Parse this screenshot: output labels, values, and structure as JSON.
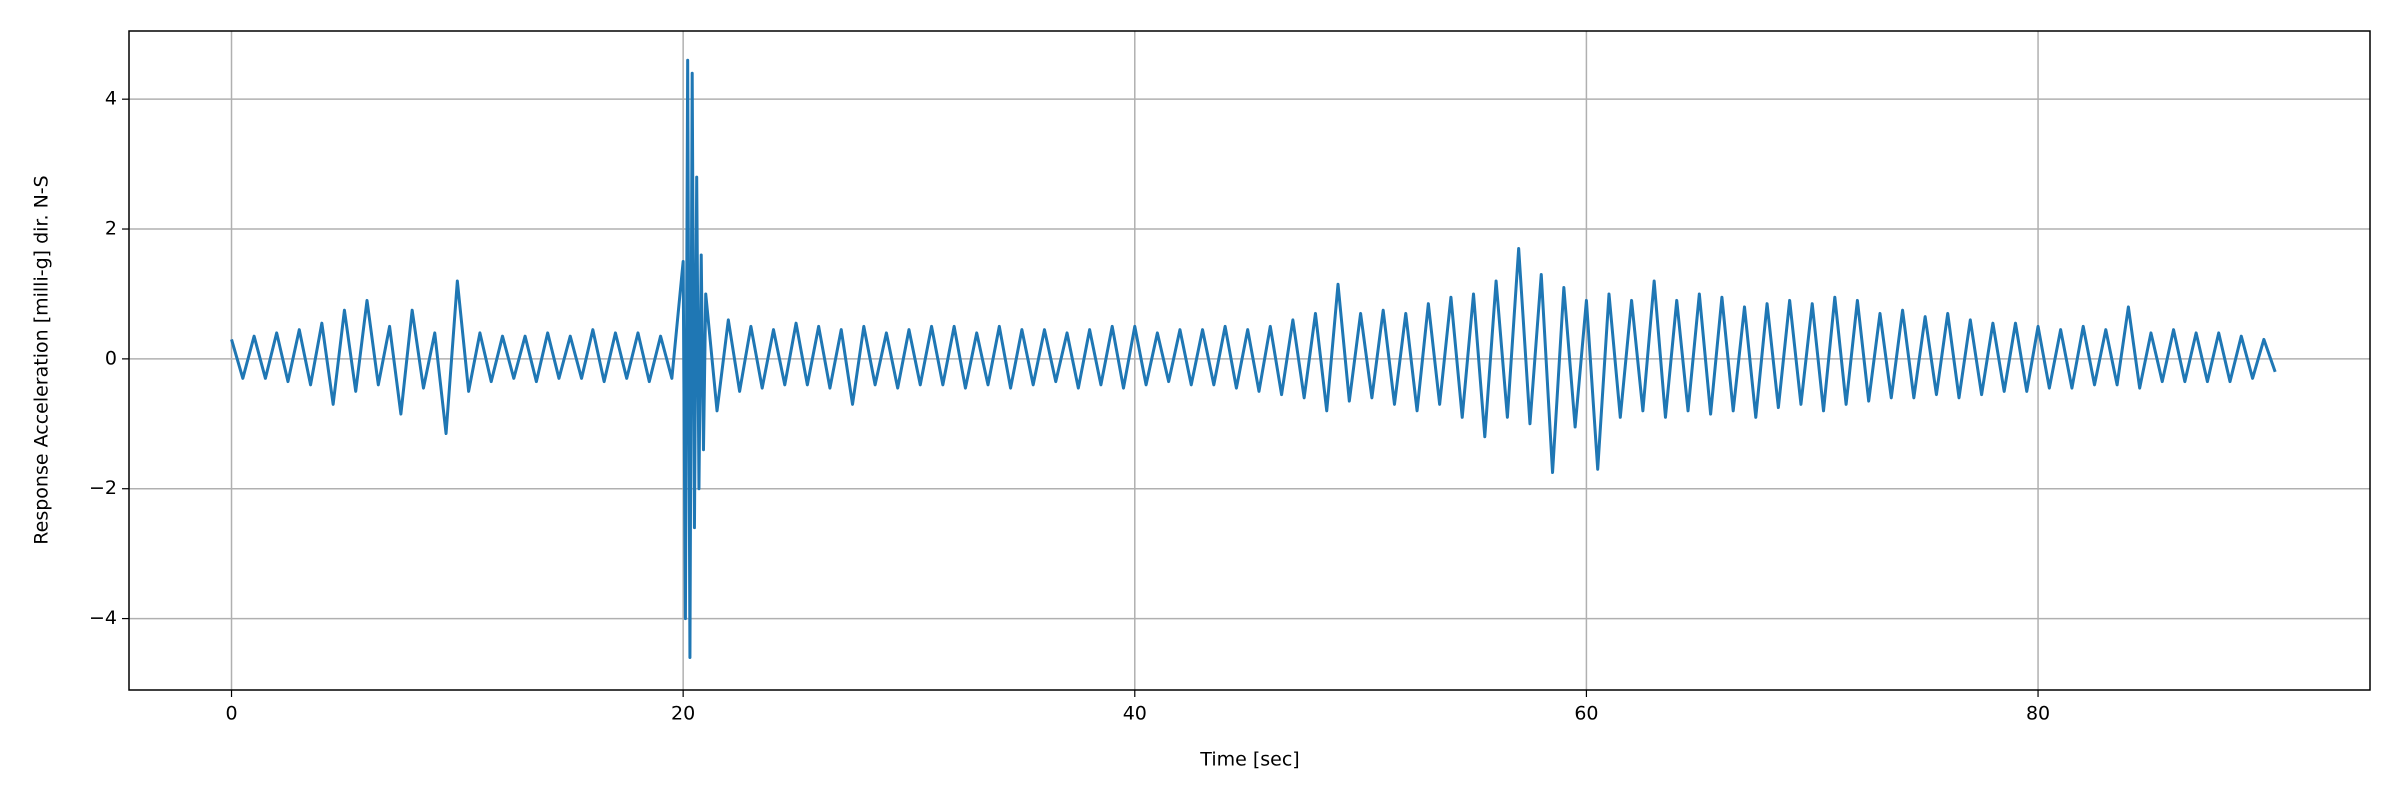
{
  "chart_data": {
    "type": "line",
    "xlabel": "Time [sec]",
    "ylabel": "Response Acceleration [milli-g] dir. N-S",
    "color": "#1f77b4",
    "grid": true,
    "xlim": [
      -4.54,
      94.7
    ],
    "ylim": [
      -5.1,
      5.05
    ],
    "xticks": [
      0,
      20,
      40,
      60,
      80
    ],
    "yticks": [
      {
        "value": -4,
        "label": "−4"
      },
      {
        "value": -2,
        "label": "−2"
      },
      0,
      2,
      4
    ],
    "x": [
      0,
      0.5,
      1,
      1.5,
      2,
      2.5,
      3,
      3.5,
      4,
      4.5,
      5,
      5.5,
      6,
      6.5,
      7,
      7.5,
      8,
      8.5,
      9,
      9.5,
      10,
      10.5,
      11,
      11.5,
      12,
      12.5,
      13,
      13.5,
      14,
      14.5,
      15,
      15.5,
      16,
      16.5,
      17,
      17.5,
      18,
      18.5,
      19,
      19.5,
      20,
      20.1,
      20.2,
      20.3,
      20.4,
      20.5,
      20.6,
      20.7,
      20.8,
      20.9,
      21,
      21.5,
      22,
      22.5,
      23,
      23.5,
      24,
      24.5,
      25,
      25.5,
      26,
      26.5,
      27,
      27.5,
      28,
      28.5,
      29,
      29.5,
      30,
      30.5,
      31,
      31.5,
      32,
      32.5,
      33,
      33.5,
      34,
      34.5,
      35,
      35.5,
      36,
      36.5,
      37,
      37.5,
      38,
      38.5,
      39,
      39.5,
      40,
      40.5,
      41,
      41.5,
      42,
      42.5,
      43,
      43.5,
      44,
      44.5,
      45,
      45.5,
      46,
      46.5,
      47,
      47.5,
      48,
      48.5,
      49,
      49.5,
      50,
      50.5,
      51,
      51.5,
      52,
      52.5,
      53,
      53.5,
      54,
      54.5,
      55,
      55.5,
      56,
      56.5,
      57,
      57.5,
      58,
      58.5,
      59,
      59.5,
      60,
      60.5,
      61,
      61.5,
      62,
      62.5,
      63,
      63.5,
      64,
      64.5,
      65,
      65.5,
      66,
      66.5,
      67,
      67.5,
      68,
      68.5,
      69,
      69.5,
      70,
      70.5,
      71,
      71.5,
      72,
      72.5,
      73,
      73.5,
      74,
      74.5,
      75,
      75.5,
      76,
      76.5,
      77,
      77.5,
      78,
      78.5,
      79,
      79.5,
      80,
      80.5,
      81,
      81.5,
      82,
      82.5,
      83,
      83.5,
      84,
      84.5,
      85,
      85.5,
      86,
      86.5,
      87,
      87.5,
      88,
      88.5,
      89,
      89.5,
      90,
      90.5
    ],
    "values": [
      0.3,
      -0.3,
      0.35,
      -0.3,
      0.4,
      -0.35,
      0.45,
      -0.4,
      0.55,
      -0.7,
      0.75,
      -0.5,
      0.9,
      -0.4,
      0.5,
      -0.85,
      0.75,
      -0.45,
      0.4,
      -1.15,
      1.2,
      -0.5,
      0.4,
      -0.35,
      0.35,
      -0.3,
      0.35,
      -0.35,
      0.4,
      -0.3,
      0.35,
      -0.3,
      0.45,
      -0.35,
      0.4,
      -0.3,
      0.4,
      -0.35,
      0.35,
      -0.3,
      1.5,
      -4.0,
      4.6,
      -4.6,
      4.4,
      -2.6,
      2.8,
      -2.0,
      1.6,
      -1.4,
      1.0,
      -0.8,
      0.6,
      -0.5,
      0.5,
      -0.45,
      0.45,
      -0.4,
      0.55,
      -0.4,
      0.5,
      -0.45,
      0.45,
      -0.7,
      0.5,
      -0.4,
      0.4,
      -0.45,
      0.45,
      -0.4,
      0.5,
      -0.4,
      0.5,
      -0.45,
      0.4,
      -0.4,
      0.5,
      -0.45,
      0.45,
      -0.4,
      0.45,
      -0.35,
      0.4,
      -0.45,
      0.45,
      -0.4,
      0.5,
      -0.45,
      0.5,
      -0.4,
      0.4,
      -0.35,
      0.45,
      -0.4,
      0.45,
      -0.4,
      0.5,
      -0.45,
      0.45,
      -0.5,
      0.5,
      -0.55,
      0.6,
      -0.6,
      0.7,
      -0.8,
      1.15,
      -0.65,
      0.7,
      -0.6,
      0.75,
      -0.7,
      0.7,
      -0.8,
      0.85,
      -0.7,
      0.95,
      -0.9,
      1.0,
      -1.2,
      1.2,
      -0.9,
      1.7,
      -1.0,
      1.3,
      -1.75,
      1.1,
      -1.05,
      0.9,
      -1.7,
      1.0,
      -0.9,
      0.9,
      -0.8,
      1.2,
      -0.9,
      0.9,
      -0.8,
      1.0,
      -0.85,
      0.95,
      -0.8,
      0.8,
      -0.9,
      0.85,
      -0.75,
      0.9,
      -0.7,
      0.85,
      -0.8,
      0.95,
      -0.7,
      0.9,
      -0.65,
      0.7,
      -0.6,
      0.75,
      -0.6,
      0.65,
      -0.55,
      0.7,
      -0.6,
      0.6,
      -0.55,
      0.55,
      -0.5,
      0.55,
      -0.5,
      0.5,
      -0.45,
      0.45,
      -0.45,
      0.5,
      -0.4,
      0.45,
      -0.4,
      0.8,
      -0.45,
      0.4,
      -0.35,
      0.45,
      -0.35,
      0.4,
      -0.35,
      0.4,
      -0.35,
      0.35,
      -0.3,
      0.3,
      -0.2
    ]
  }
}
